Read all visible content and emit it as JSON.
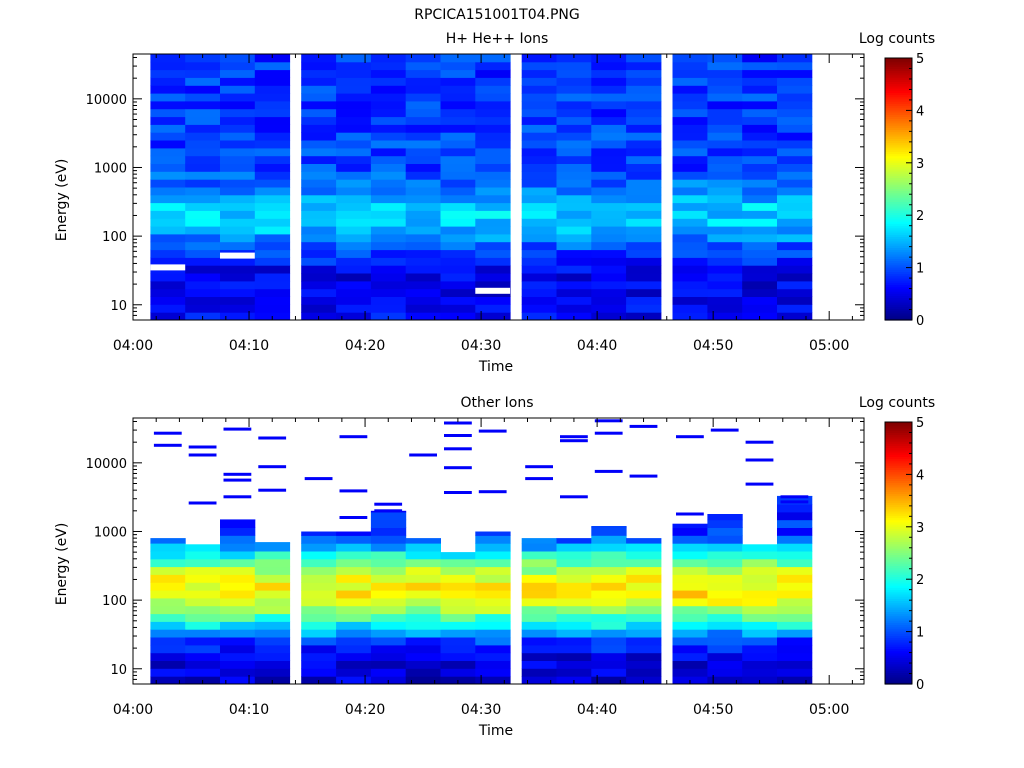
{
  "figure": {
    "title": "RPCICA151001T04.PNG"
  },
  "chart_data": [
    {
      "type": "heatmap",
      "title": "H+ He++ Ions",
      "xlabel": "Time",
      "ylabel": "Energy (eV)",
      "x_tick_labels": [
        "04:00",
        "04:10",
        "04:20",
        "04:30",
        "04:40",
        "04:50",
        "05:00"
      ],
      "y_tick_labels": [
        "10",
        "100",
        "1000",
        "10000"
      ],
      "yscale": "log",
      "ylim": [
        6,
        45000
      ],
      "xlim": [
        "04:00",
        "05:03"
      ],
      "colorbar": {
        "label": "Log counts",
        "tick_labels": [
          "0",
          "1",
          "2",
          "3",
          "4",
          "5"
        ],
        "range": [
          0,
          5
        ],
        "colormap": "jet"
      },
      "time_columns": [
        "04:03",
        "04:06",
        "04:09",
        "04:12",
        "04:16",
        "04:19",
        "04:22",
        "04:25",
        "04:28",
        "04:31",
        "04:35",
        "04:38",
        "04:41",
        "04:44",
        "04:48",
        "04:51",
        "04:54",
        "04:57"
      ],
      "energy_profile": {
        "energies_eV": [
          8,
          15,
          30,
          60,
          120,
          250,
          500,
          1000,
          5000,
          40000
        ],
        "log_counts": [
          0.6,
          0.5,
          0.55,
          0.9,
          1.5,
          1.7,
          1.2,
          0.95,
          0.9,
          0.85
        ]
      },
      "gaps_eV_at_column": [
        {
          "column": "04:03",
          "energy_eV": 35
        },
        {
          "column": "04:09",
          "energy_eV": 52
        },
        {
          "column": "04:31",
          "energy_eV": 16
        }
      ]
    },
    {
      "type": "heatmap",
      "title": "Other Ions",
      "xlabel": "Time",
      "ylabel": "Energy (eV)",
      "x_tick_labels": [
        "04:00",
        "04:10",
        "04:20",
        "04:30",
        "04:40",
        "04:50",
        "05:00"
      ],
      "y_tick_labels": [
        "10",
        "100",
        "1000",
        "10000"
      ],
      "yscale": "log",
      "ylim": [
        6,
        45000
      ],
      "xlim": [
        "04:00",
        "05:03"
      ],
      "colorbar": {
        "label": "Log counts",
        "tick_labels": [
          "0",
          "1",
          "2",
          "3",
          "4",
          "5"
        ],
        "range": [
          0,
          5
        ],
        "colormap": "jet"
      },
      "time_columns": [
        "04:03",
        "04:06",
        "04:09",
        "04:12",
        "04:16",
        "04:19",
        "04:22",
        "04:25",
        "04:28",
        "04:31",
        "04:35",
        "04:38",
        "04:41",
        "04:44",
        "04:48",
        "04:51",
        "04:54",
        "04:57"
      ],
      "energy_profile": {
        "energies_eV": [
          8,
          15,
          25,
          40,
          70,
          120,
          200,
          350,
          600,
          1000
        ],
        "log_counts": [
          0.4,
          0.5,
          0.9,
          1.7,
          2.6,
          3.2,
          3.1,
          2.4,
          1.5,
          0.8
        ]
      },
      "band_top_eV": [
        800,
        650,
        1500,
        700,
        1000,
        1000,
        2000,
        800,
        500,
        1000,
        800,
        800,
        1200,
        800,
        1300,
        1800,
        650,
        3300
      ],
      "sparse_hits_eV": [
        [
          27000,
          18000
        ],
        [
          17000,
          13000,
          2600
        ],
        [
          31000,
          6800,
          5600,
          3200
        ],
        [
          23000,
          8800,
          4000
        ],
        [
          5900
        ],
        [
          24000,
          3900,
          1600
        ],
        [
          2500,
          2000
        ],
        [
          13000
        ],
        [
          38000,
          25000,
          16000,
          8500,
          3700
        ],
        [
          29000,
          3800
        ],
        [
          8800,
          5900
        ],
        [
          24000,
          21000,
          3200
        ],
        [
          41000,
          27000,
          7500
        ],
        [
          34000,
          6400
        ],
        [
          24000,
          1800
        ],
        [
          30000
        ],
        [
          20000,
          11000,
          4900
        ],
        [
          3200,
          2700
        ]
      ]
    }
  ]
}
